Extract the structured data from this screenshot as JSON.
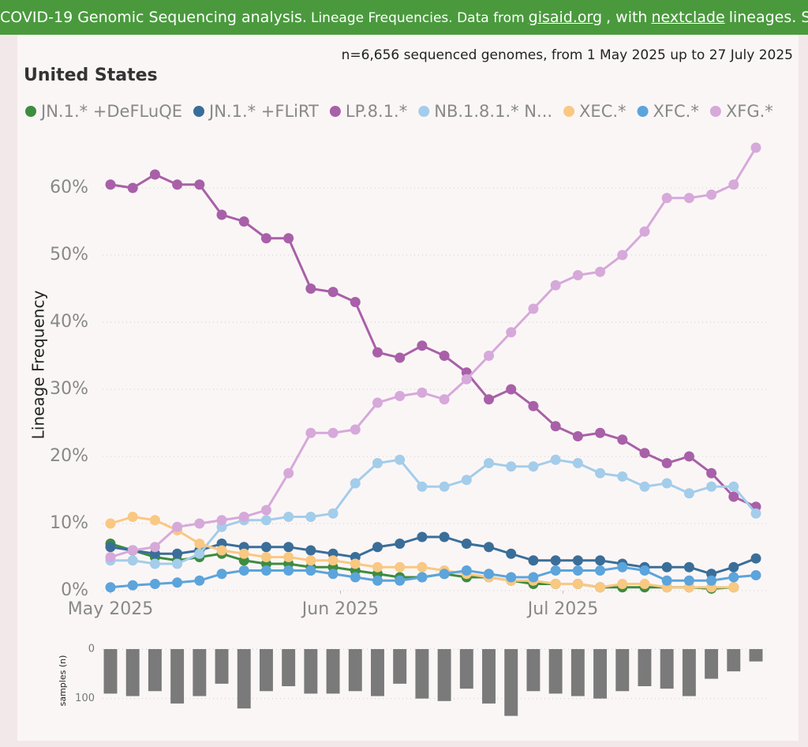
{
  "header": {
    "segments": [
      {
        "text": "COVID-19 Genomic Sequencing analysis.",
        "big": true,
        "link": false
      },
      {
        "text": "Lineage Frequencies. Data from",
        "big": false,
        "link": false
      },
      {
        "text": "gisaid.org",
        "big": true,
        "link": true
      },
      {
        "text": ", with",
        "big": true,
        "link": false
      },
      {
        "text": "nextclade",
        "big": true,
        "link": true
      },
      {
        "text": "lineages. Source",
        "big": true,
        "link": false
      }
    ]
  },
  "subtitle": "n=6,656 sequenced genomes, from 1 May 2025 up to 27 July 2025",
  "title": "United States",
  "chart_data": [
    {
      "type": "line",
      "y_label": "Lineage Frequency",
      "grid": true,
      "x": [
        "2025-05-01",
        "2025-05-04",
        "2025-05-07",
        "2025-05-10",
        "2025-05-13",
        "2025-05-16",
        "2025-05-19",
        "2025-05-22",
        "2025-05-25",
        "2025-05-28",
        "2025-05-31",
        "2025-06-03",
        "2025-06-06",
        "2025-06-09",
        "2025-06-12",
        "2025-06-15",
        "2025-06-18",
        "2025-06-21",
        "2025-06-24",
        "2025-06-27",
        "2025-06-30",
        "2025-07-03",
        "2025-07-06",
        "2025-07-09",
        "2025-07-12",
        "2025-07-15",
        "2025-07-18",
        "2025-07-21",
        "2025-07-24",
        "2025-07-27"
      ],
      "xlim": [
        "2025-05-01",
        "2025-07-27"
      ],
      "xticks": [
        {
          "value": "2025-05-01",
          "label": "May 2025"
        },
        {
          "value": "2025-06-01",
          "label": "Jun 2025"
        },
        {
          "value": "2025-07-01",
          "label": "Jul 2025"
        }
      ],
      "ylim": [
        0,
        68
      ],
      "yticks": [
        {
          "value": 0,
          "label": "0%"
        },
        {
          "value": 10,
          "label": "10%"
        },
        {
          "value": 20,
          "label": "20%"
        },
        {
          "value": 30,
          "label": "30%"
        },
        {
          "value": 40,
          "label": "40%"
        },
        {
          "value": 50,
          "label": "50%"
        },
        {
          "value": 60,
          "label": "60%"
        }
      ],
      "series": [
        {
          "name": "JN.1.* +DeFLuQE",
          "color": "#3d8c40",
          "values": [
            7,
            6,
            5,
            4.5,
            5,
            5.5,
            4.5,
            4,
            4,
            3.5,
            3.5,
            3,
            2.5,
            2,
            2,
            2.5,
            2,
            2,
            1.5,
            1,
            1,
            1,
            0.5,
            0.5,
            0.5,
            0.5,
            0.5,
            0.3,
            0.5,
            null
          ]
        },
        {
          "name": "JN.1.* +FLiRT",
          "color": "#3a6e99",
          "values": [
            6.5,
            6,
            5.5,
            5.5,
            6,
            7,
            6.5,
            6.5,
            6.5,
            6,
            5.5,
            5,
            6.5,
            7,
            8,
            8,
            7,
            6.5,
            5.5,
            4.5,
            4.5,
            4.5,
            4.5,
            4,
            3.5,
            3.5,
            3.5,
            2.5,
            3.5,
            4.8
          ]
        },
        {
          "name": "LP.8.1.*",
          "color": "#a860a8",
          "values": [
            60.5,
            60,
            62,
            60.5,
            60.5,
            56,
            55,
            52.5,
            52.5,
            45,
            44.5,
            43,
            35.5,
            34.7,
            36.5,
            35,
            32.5,
            28.5,
            30,
            27.5,
            24.5,
            23,
            23.5,
            22.5,
            20.5,
            19,
            20,
            17.5,
            14,
            12.5
          ]
        },
        {
          "name": "NB.1.8.1.* N...",
          "color": "#a3cdea",
          "values": [
            4.5,
            4.5,
            4,
            4,
            5.5,
            9.5,
            10.5,
            10.5,
            11,
            11,
            11.5,
            16,
            19,
            19.5,
            15.5,
            15.5,
            16.5,
            19,
            18.5,
            18.5,
            19.5,
            19,
            17.5,
            17,
            15.5,
            16,
            14.5,
            15.5,
            15.5,
            11.5
          ]
        },
        {
          "name": "XEC.*",
          "color": "#f9c882",
          "values": [
            10,
            11,
            10.5,
            9,
            7,
            6,
            5.5,
            5,
            5,
            4.5,
            4.5,
            4,
            3.5,
            3.5,
            3.5,
            3,
            2.5,
            2,
            1.5,
            1.5,
            1,
            1,
            0.5,
            1,
            1,
            0.5,
            0.5,
            0.5,
            0.5,
            null
          ]
        },
        {
          "name": "XFC.*",
          "color": "#5ca4dc",
          "values": [
            0.5,
            0.8,
            1,
            1.2,
            1.5,
            2.5,
            3,
            3,
            3,
            3,
            2.5,
            2,
            1.5,
            1.5,
            2,
            2.5,
            3,
            2.5,
            2,
            2,
            3,
            3,
            3,
            3.5,
            3,
            1.5,
            1.5,
            1.5,
            2,
            2.3
          ]
        },
        {
          "name": "XFG.*",
          "color": "#d6a9da",
          "values": [
            5,
            6,
            6.5,
            9.5,
            10,
            10.5,
            11,
            12,
            17.5,
            23.5,
            23.5,
            24,
            28,
            29,
            29.5,
            28.5,
            31.5,
            35,
            38.5,
            42,
            45.5,
            47,
            47.5,
            50,
            53.5,
            58.5,
            58.5,
            59,
            60.5,
            66
          ]
        }
      ]
    },
    {
      "type": "bar",
      "y_label": "samples (n)",
      "color": "#7a7a7a",
      "grid": true,
      "x": [
        "2025-05-01",
        "2025-05-04",
        "2025-05-07",
        "2025-05-10",
        "2025-05-13",
        "2025-05-16",
        "2025-05-19",
        "2025-05-22",
        "2025-05-25",
        "2025-05-28",
        "2025-05-31",
        "2025-06-03",
        "2025-06-06",
        "2025-06-09",
        "2025-06-12",
        "2025-06-15",
        "2025-06-18",
        "2025-06-21",
        "2025-06-24",
        "2025-06-27",
        "2025-06-30",
        "2025-07-03",
        "2025-07-06",
        "2025-07-09",
        "2025-07-12",
        "2025-07-15",
        "2025-07-18",
        "2025-07-21",
        "2025-07-24",
        "2025-07-27"
      ],
      "xlim": [
        "2025-05-01",
        "2025-07-27"
      ],
      "values": [
        90,
        95,
        85,
        110,
        95,
        70,
        120,
        85,
        75,
        90,
        90,
        85,
        95,
        70,
        100,
        105,
        80,
        110,
        135,
        85,
        90,
        95,
        100,
        85,
        75,
        80,
        95,
        60,
        45,
        25
      ],
      "ylim": [
        0,
        150
      ],
      "yticks": [
        0,
        100
      ]
    }
  ]
}
